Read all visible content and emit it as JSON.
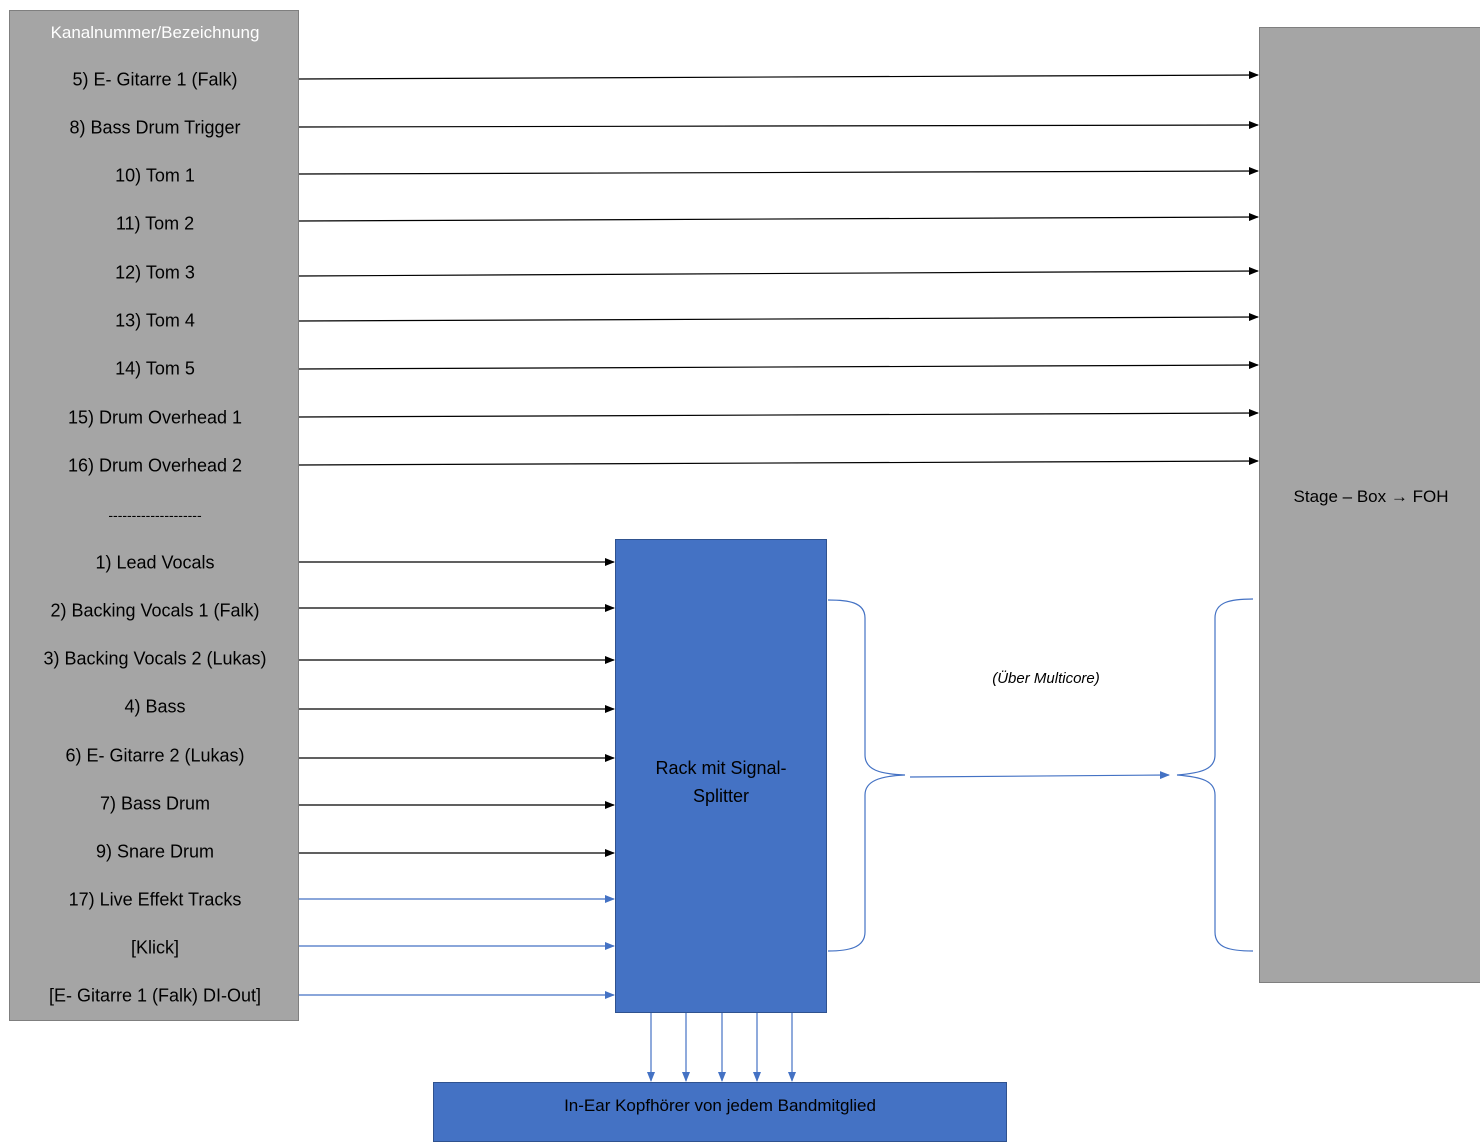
{
  "channel_box": {
    "header": "Kanalnummer/Bezeichnung",
    "direct_channels": [
      "5) E- Gitarre 1 (Falk)",
      "8) Bass Drum Trigger",
      "10) Tom 1",
      "11) Tom 2",
      "12) Tom 3",
      "13) Tom 4",
      "14) Tom 5",
      "15) Drum Overhead 1",
      "16) Drum Overhead 2"
    ],
    "separator": "--------------------",
    "split_channels": [
      "1) Lead Vocals",
      "2) Backing Vocals 1 (Falk)",
      "3) Backing Vocals 2 (Lukas)",
      "4) Bass",
      "6) E- Gitarre 2 (Lukas)",
      "7) Bass Drum",
      "9) Snare Drum",
      "17) Live Effekt Tracks",
      "[Klick]",
      "[E- Gitarre 1 (Falk) DI-Out]"
    ]
  },
  "rack": {
    "line1": "Rack mit Signal-",
    "line2": "Splitter"
  },
  "stagebox": {
    "label": "Stage – Box → FOH"
  },
  "multicore": {
    "label": "(Über Multicore)"
  },
  "inear": {
    "label": "In-Ear Kopfhörer von jedem Bandmitglied"
  },
  "colors": {
    "gray_box": "#a5a5a5",
    "blue_box": "#4472c4",
    "black_wire": "#000000",
    "blue_wire": "#4472c4"
  }
}
